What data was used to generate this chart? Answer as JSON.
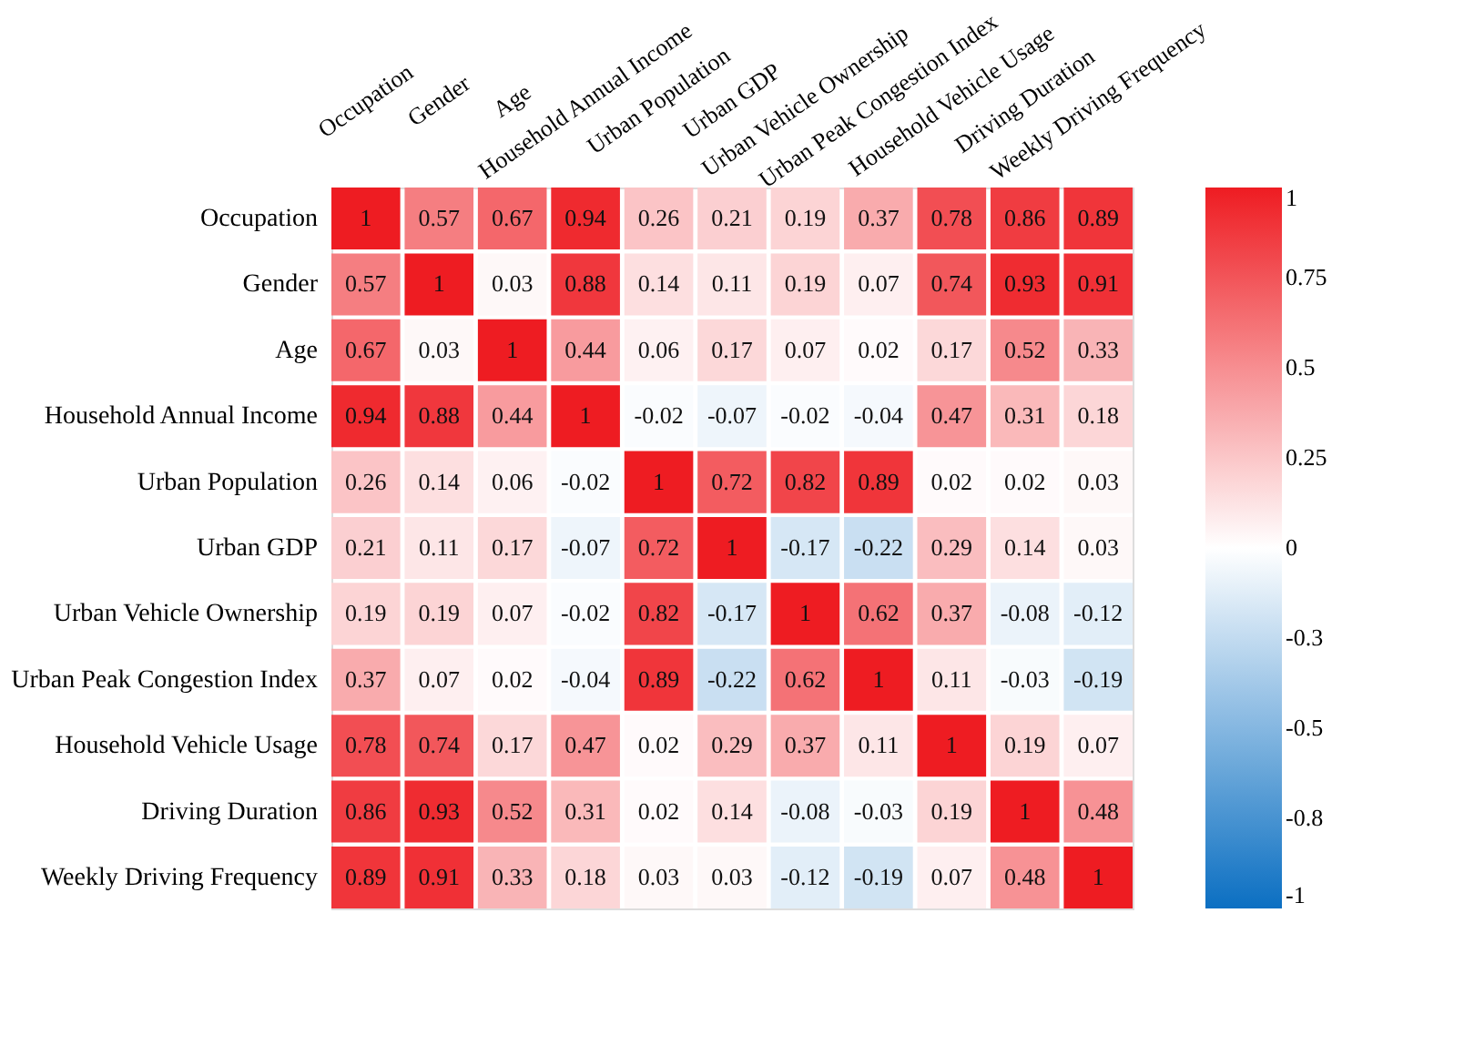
{
  "chart_data": {
    "type": "heatmap",
    "categories": [
      "Occupation",
      "Gender",
      "Age",
      "Household Annual Income",
      "Urban Population",
      "Urban GDP",
      "Urban Vehicle Ownership",
      "Urban Peak Congestion Index",
      "Household Vehicle Usage",
      "Driving Duration",
      "Weekly Driving Frequency"
    ],
    "y_categories": [
      "Occupation",
      "Gender",
      "Age",
      "Household Annual Income",
      "Urban Population",
      "Urban GDP",
      "Urban Vehicle Ownership",
      "Urban Peak Congestion Index",
      "Household Vehicle Usage",
      "Driving Duration",
      "Weekly Driving Frequency"
    ],
    "cells": [
      [
        1,
        0.57,
        0.67,
        0.94,
        0.26,
        0.21,
        0.19,
        0.37,
        0.78,
        0.86,
        0.89
      ],
      [
        0.57,
        1,
        0.03,
        0.88,
        0.14,
        0.11,
        0.19,
        0.07,
        0.74,
        0.93,
        0.91
      ],
      [
        0.67,
        0.03,
        1,
        0.44,
        0.06,
        0.17,
        0.07,
        0.02,
        0.17,
        0.52,
        0.33
      ],
      [
        0.94,
        0.88,
        0.44,
        1,
        -0.02,
        -0.07,
        -0.02,
        -0.04,
        0.47,
        0.31,
        0.18
      ],
      [
        0.26,
        0.14,
        0.06,
        -0.02,
        1,
        0.72,
        0.82,
        0.89,
        0.02,
        0.02,
        0.03
      ],
      [
        0.21,
        0.11,
        0.17,
        -0.07,
        0.72,
        1,
        -0.17,
        -0.22,
        0.29,
        0.14,
        0.03
      ],
      [
        0.19,
        0.19,
        0.07,
        -0.02,
        0.82,
        -0.17,
        1,
        0.62,
        0.37,
        -0.08,
        -0.12
      ],
      [
        0.37,
        0.07,
        0.02,
        -0.04,
        0.89,
        -0.22,
        0.62,
        1,
        0.11,
        -0.03,
        -0.19
      ],
      [
        0.78,
        0.74,
        0.17,
        0.47,
        0.02,
        0.29,
        0.37,
        0.11,
        1,
        0.19,
        0.07
      ],
      [
        0.86,
        0.93,
        0.52,
        0.31,
        0.02,
        0.14,
        -0.08,
        -0.03,
        0.19,
        1,
        0.48
      ],
      [
        0.89,
        0.91,
        0.33,
        0.18,
        0.03,
        0.03,
        -0.12,
        -0.19,
        0.07,
        0.48,
        1
      ]
    ],
    "colors": [
      "#0b6fc2",
      "#ffffff",
      "#ee1c22"
    ],
    "clim": [
      -1,
      1
    ],
    "cticks": [
      1,
      0.75,
      0.5,
      0.25,
      0,
      {
        "value": -0.25,
        "label": "-0.3"
      },
      -0.5,
      {
        "value": -0.75,
        "label": "-0.8"
      },
      -1
    ],
    "data_labels": true,
    "grid": false
  }
}
